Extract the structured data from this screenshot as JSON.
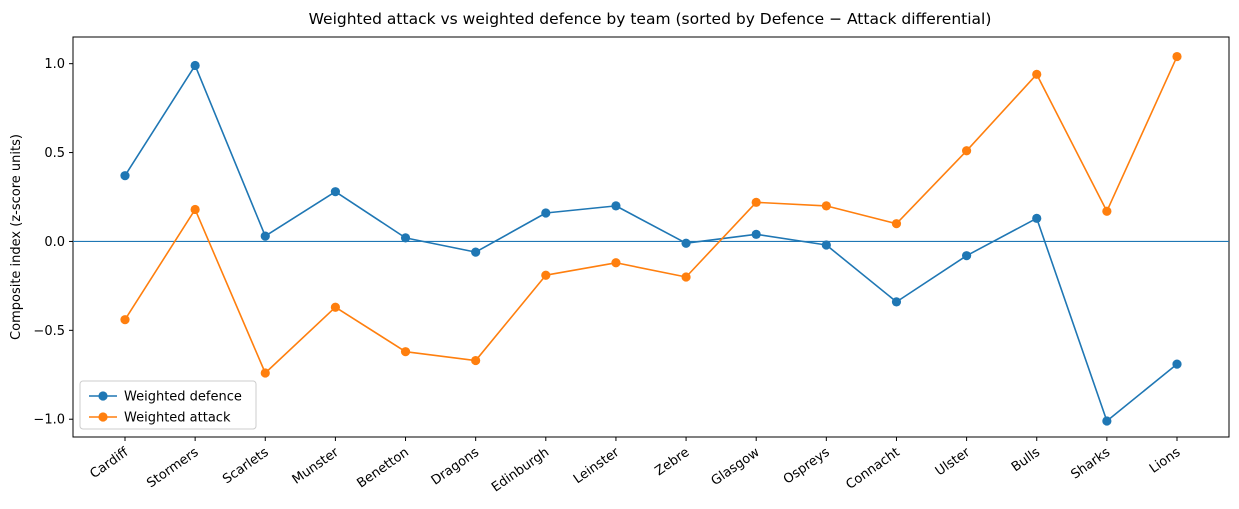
{
  "chart_data": {
    "type": "line",
    "title": "Weighted attack vs weighted defence by team (sorted by Defence − Attack differential)",
    "xlabel": "",
    "ylabel": "Composite index (z-score units)",
    "categories": [
      "Cardiff",
      "Stormers",
      "Scarlets",
      "Munster",
      "Benetton",
      "Dragons",
      "Edinburgh",
      "Leinster",
      "Zebre",
      "Glasgow",
      "Ospreys",
      "Connacht",
      "Ulster",
      "Bulls",
      "Sharks",
      "Lions"
    ],
    "ylim": [
      -1.1,
      1.15
    ],
    "yticks": [
      1.0,
      0.5,
      0.0,
      -0.5,
      -1.0
    ],
    "ytick_labels": [
      "1.0",
      "0.5",
      "0.0",
      "−0.5",
      "−1.0"
    ],
    "reference_line": 0.0,
    "legend_position": "lower-left",
    "series": [
      {
        "name": "Weighted defence",
        "color": "#1f77b4",
        "values": [
          0.37,
          0.99,
          0.03,
          0.28,
          0.02,
          -0.06,
          0.16,
          0.2,
          -0.01,
          0.04,
          -0.02,
          -0.34,
          -0.08,
          0.13,
          -1.01,
          -0.69
        ]
      },
      {
        "name": "Weighted attack",
        "color": "#ff7f0e",
        "values": [
          -0.44,
          0.18,
          -0.74,
          -0.37,
          -0.62,
          -0.67,
          -0.19,
          -0.12,
          -0.2,
          0.22,
          0.2,
          0.1,
          0.51,
          0.94,
          0.17,
          1.04
        ]
      }
    ]
  }
}
